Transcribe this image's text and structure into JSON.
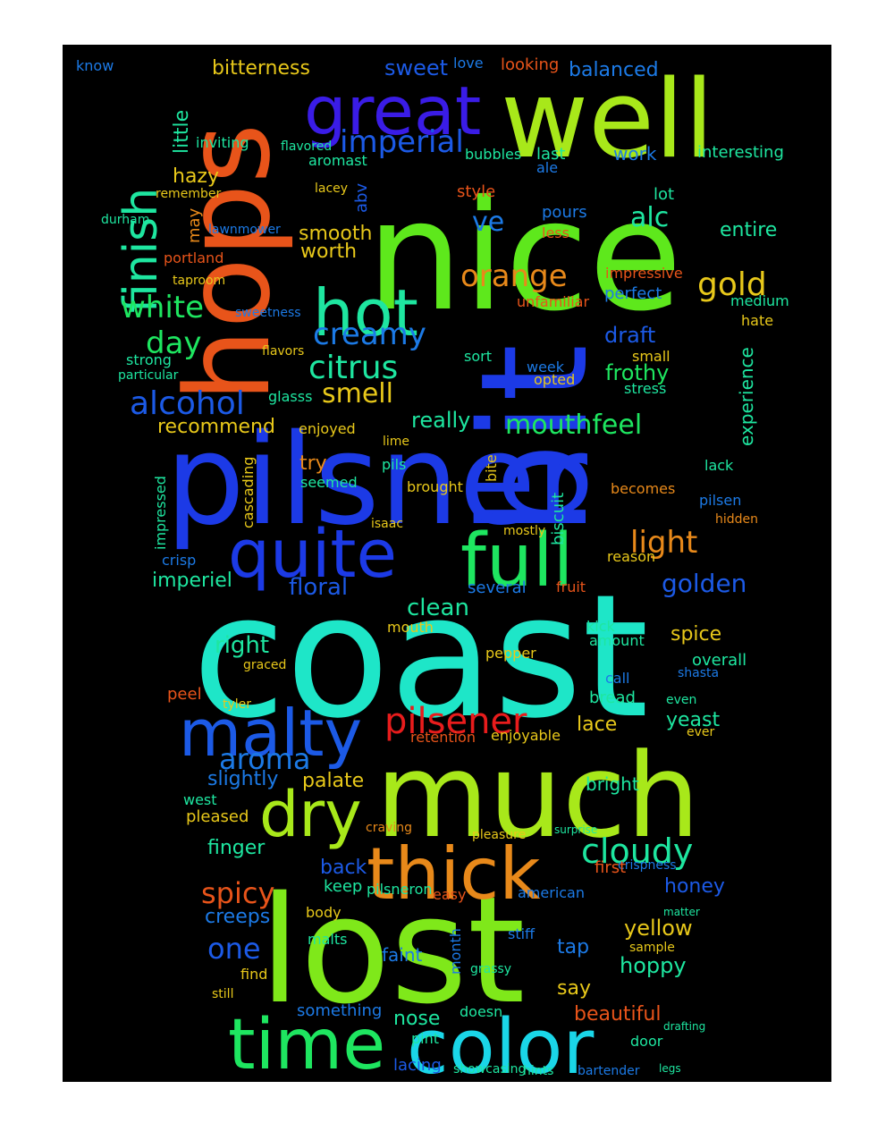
{
  "wordcloud": {
    "background": "#000000",
    "page_background": "#ffffff",
    "words": [
      {
        "text": "coast",
        "color": "#1ee6c8"
      },
      {
        "text": "bit",
        "color": "#1c3ae6"
      },
      {
        "text": "pilsner",
        "color": "#1c3ae6"
      },
      {
        "text": "nice",
        "color": "#5ee81c"
      },
      {
        "text": "lost",
        "color": "#7fe81a"
      },
      {
        "text": "much",
        "color": "#a8e81a"
      },
      {
        "text": "hops",
        "color": "#e8541a"
      },
      {
        "text": "well",
        "color": "#a8e81a"
      },
      {
        "text": "time",
        "color": "#1ee660"
      },
      {
        "text": "color",
        "color": "#1ad6e8"
      },
      {
        "text": "thick",
        "color": "#e8891a"
      },
      {
        "text": "quite",
        "color": "#1c3ae6"
      },
      {
        "text": "full",
        "color": "#1ee660"
      },
      {
        "text": "great",
        "color": "#3a1ce6"
      },
      {
        "text": "malty",
        "color": "#1c5ae6"
      },
      {
        "text": "hot",
        "color": "#1ee6a0"
      },
      {
        "text": "dry",
        "color": "#a8e81a"
      },
      {
        "text": "finish",
        "color": "#1ee6a0"
      },
      {
        "text": "pilsener",
        "color": "#e81c1c"
      },
      {
        "text": "cloudy",
        "color": "#1ee6a0"
      },
      {
        "text": "orange",
        "color": "#e8891a"
      },
      {
        "text": "creamy",
        "color": "#1c7ae6"
      },
      {
        "text": "citrus",
        "color": "#1ee6a0"
      },
      {
        "text": "mouthfeel",
        "color": "#1ee660"
      },
      {
        "text": "imperial",
        "color": "#1c5ae6"
      },
      {
        "text": "white",
        "color": "#1ee660"
      },
      {
        "text": "alcohol",
        "color": "#1c5ae6"
      },
      {
        "text": "light",
        "color": "#e8891a"
      },
      {
        "text": "smell",
        "color": "#e8c81a"
      },
      {
        "text": "gold",
        "color": "#e8c81a"
      },
      {
        "text": "day",
        "color": "#1ee660"
      },
      {
        "text": "aroma",
        "color": "#1c7ae6"
      },
      {
        "text": "spicy",
        "color": "#e8541a"
      },
      {
        "text": "one",
        "color": "#1c5ae6"
      },
      {
        "text": "alc",
        "color": "#1ee6a0"
      },
      {
        "text": "ve",
        "color": "#1c7ae6"
      },
      {
        "text": "golden",
        "color": "#1c5ae6"
      },
      {
        "text": "clean",
        "color": "#1ee6a0"
      },
      {
        "text": "floral",
        "color": "#1c5ae6"
      },
      {
        "text": "right",
        "color": "#1ee6a0"
      },
      {
        "text": "sweet",
        "color": "#1c5ae6"
      },
      {
        "text": "frothy",
        "color": "#1ee660"
      },
      {
        "text": "draft",
        "color": "#1c5ae6"
      },
      {
        "text": "bitterness",
        "color": "#e8c81a"
      },
      {
        "text": "really",
        "color": "#1ee6a0"
      },
      {
        "text": "balanced",
        "color": "#1c7ae6"
      },
      {
        "text": "entire",
        "color": "#1ee6a0"
      },
      {
        "text": "yellow",
        "color": "#e8c81a"
      },
      {
        "text": "hoppy",
        "color": "#1ee6a0"
      },
      {
        "text": "beautiful",
        "color": "#e8541a"
      },
      {
        "text": "lacing",
        "color": "#1c5ae6"
      },
      {
        "text": "honey",
        "color": "#1c5ae6"
      },
      {
        "text": "creeps",
        "color": "#1c7ae6"
      },
      {
        "text": "finger",
        "color": "#1ee6a0"
      },
      {
        "text": "slightly",
        "color": "#1c7ae6"
      },
      {
        "text": "palate",
        "color": "#e8c81a"
      },
      {
        "text": "spice",
        "color": "#e8c81a"
      },
      {
        "text": "bright",
        "color": "#1ee6a0"
      },
      {
        "text": "lace",
        "color": "#e8c81a"
      },
      {
        "text": "yeast",
        "color": "#1ee6a0"
      },
      {
        "text": "nose",
        "color": "#1ee6a0"
      },
      {
        "text": "say",
        "color": "#e8c81a"
      },
      {
        "text": "tap",
        "color": "#1c7ae6"
      },
      {
        "text": "faint",
        "color": "#1c7ae6"
      },
      {
        "text": "back",
        "color": "#1c5ae6"
      },
      {
        "text": "keep",
        "color": "#1ee6a0"
      },
      {
        "text": "try",
        "color": "#e8891a"
      },
      {
        "text": "recommend",
        "color": "#e8c81a"
      },
      {
        "text": "worth",
        "color": "#e8c81a"
      },
      {
        "text": "smooth",
        "color": "#e8c81a"
      },
      {
        "text": "hazy",
        "color": "#e8c81a"
      },
      {
        "text": "imperiel",
        "color": "#1ee6a0"
      },
      {
        "text": "perfect",
        "color": "#1c7ae6"
      },
      {
        "text": "work",
        "color": "#1c7ae6"
      },
      {
        "text": "interesting",
        "color": "#1ee6a0"
      },
      {
        "text": "looking",
        "color": "#e8541a"
      },
      {
        "text": "love",
        "color": "#1c7ae6"
      },
      {
        "text": "know",
        "color": "#1c7ae6"
      },
      {
        "text": "little",
        "color": "#1ee6a0"
      },
      {
        "text": "inviting",
        "color": "#1ee6a0"
      },
      {
        "text": "aromast",
        "color": "#1ee6a0"
      },
      {
        "text": "flavored",
        "color": "#1ee6a0"
      },
      {
        "text": "lacey",
        "color": "#e8c81a"
      },
      {
        "text": "abv",
        "color": "#1c5ae6"
      },
      {
        "text": "style",
        "color": "#e8541a"
      },
      {
        "text": "last",
        "color": "#1ee6a0"
      },
      {
        "text": "ale",
        "color": "#1c7ae6"
      },
      {
        "text": "lot",
        "color": "#1ee6a0"
      },
      {
        "text": "pours",
        "color": "#1c7ae6"
      },
      {
        "text": "less",
        "color": "#e8541a"
      },
      {
        "text": "impressive",
        "color": "#e8541a"
      },
      {
        "text": "medium",
        "color": "#1ee6a0"
      },
      {
        "text": "hate",
        "color": "#e8c81a"
      },
      {
        "text": "experience",
        "color": "#1ee6a0"
      },
      {
        "text": "stress",
        "color": "#1ee6a0"
      },
      {
        "text": "week",
        "color": "#1c7ae6"
      },
      {
        "text": "opted",
        "color": "#e8c81a"
      },
      {
        "text": "sort",
        "color": "#1ee6a0"
      },
      {
        "text": "small",
        "color": "#e8c81a"
      },
      {
        "text": "pils",
        "color": "#1ee6a0"
      },
      {
        "text": "lime",
        "color": "#e8c81a"
      },
      {
        "text": "brought",
        "color": "#e8c81a"
      },
      {
        "text": "biscuit",
        "color": "#1ee6a0"
      },
      {
        "text": "bite",
        "color": "#e8c81a"
      },
      {
        "text": "pilsen",
        "color": "#1c7ae6"
      },
      {
        "text": "lack",
        "color": "#1ee6a0"
      },
      {
        "text": "becomes",
        "color": "#e8891a"
      },
      {
        "text": "hidden",
        "color": "#e8891a"
      },
      {
        "text": "reason",
        "color": "#e8c81a"
      },
      {
        "text": "fruit",
        "color": "#e8541a"
      },
      {
        "text": "several",
        "color": "#1c7ae6"
      },
      {
        "text": "mouth",
        "color": "#e8c81a"
      },
      {
        "text": "kick",
        "color": "#1ee6a0"
      },
      {
        "text": "amount",
        "color": "#1ee6a0"
      },
      {
        "text": "pepper",
        "color": "#e8c81a"
      },
      {
        "text": "overall",
        "color": "#1ee6a0"
      },
      {
        "text": "shasta",
        "color": "#1c7ae6"
      },
      {
        "text": "call",
        "color": "#1c7ae6"
      },
      {
        "text": "bread",
        "color": "#1ee6a0"
      },
      {
        "text": "even",
        "color": "#1ee6a0"
      },
      {
        "text": "ever",
        "color": "#e8c81a"
      },
      {
        "text": "enjoyable",
        "color": "#e8c81a"
      },
      {
        "text": "retention",
        "color": "#e8541a"
      },
      {
        "text": "peel",
        "color": "#e8541a"
      },
      {
        "text": "tyler",
        "color": "#e8c81a"
      },
      {
        "text": "west",
        "color": "#1ee6a0"
      },
      {
        "text": "pleased",
        "color": "#e8c81a"
      },
      {
        "text": "graced",
        "color": "#e8c81a"
      },
      {
        "text": "crisp",
        "color": "#1c7ae6"
      },
      {
        "text": "impressed",
        "color": "#1ee6a0"
      },
      {
        "text": "cascading",
        "color": "#e8c81a"
      },
      {
        "text": "seemed",
        "color": "#1ee6a0"
      },
      {
        "text": "enjoyed",
        "color": "#e8c81a"
      },
      {
        "text": "isaac",
        "color": "#e8c81a"
      },
      {
        "text": "glasss",
        "color": "#1ee6a0"
      },
      {
        "text": "flavors",
        "color": "#e8c81a"
      },
      {
        "text": "strong",
        "color": "#1ee6a0"
      },
      {
        "text": "particular",
        "color": "#1ee6a0"
      },
      {
        "text": "portland",
        "color": "#e8541a"
      },
      {
        "text": "durham",
        "color": "#1ee6a0"
      },
      {
        "text": "remember",
        "color": "#e8c81a"
      },
      {
        "text": "sweetness",
        "color": "#1c7ae6"
      },
      {
        "text": "lawnmower",
        "color": "#1c7ae6"
      },
      {
        "text": "taproom",
        "color": "#e8c81a"
      },
      {
        "text": "may",
        "color": "#e8891a"
      },
      {
        "text": "bubbles",
        "color": "#1ee6a0"
      },
      {
        "text": "unfamiliar",
        "color": "#e8541a"
      },
      {
        "text": "mostly",
        "color": "#e8c81a"
      },
      {
        "text": "american",
        "color": "#1c7ae6"
      },
      {
        "text": "crispness",
        "color": "#1c7ae6"
      },
      {
        "text": "first",
        "color": "#e8541a"
      },
      {
        "text": "body",
        "color": "#e8c81a"
      },
      {
        "text": "malts",
        "color": "#1ee6a0"
      },
      {
        "text": "stiff",
        "color": "#1c7ae6"
      },
      {
        "text": "something",
        "color": "#1c7ae6"
      },
      {
        "text": "doesn",
        "color": "#1ee6a0"
      },
      {
        "text": "pint",
        "color": "#1ee6a0"
      },
      {
        "text": "door",
        "color": "#1ee6a0"
      },
      {
        "text": "hints",
        "color": "#1ee6a0"
      },
      {
        "text": "showcasing",
        "color": "#1ee6a0"
      },
      {
        "text": "bartender",
        "color": "#1c7ae6"
      },
      {
        "text": "grassy",
        "color": "#1ee6a0"
      },
      {
        "text": "sample",
        "color": "#e8c81a"
      },
      {
        "text": "still",
        "color": "#e8c81a"
      },
      {
        "text": "find",
        "color": "#e8c81a"
      },
      {
        "text": "easy",
        "color": "#e8541a"
      },
      {
        "text": "pilsneron",
        "color": "#1ee6a0"
      },
      {
        "text": "month",
        "color": "#1c7ae6"
      },
      {
        "text": "pleasure",
        "color": "#e8c81a"
      },
      {
        "text": "surprise",
        "color": "#1ee6a0"
      },
      {
        "text": "craving",
        "color": "#e8891a"
      },
      {
        "text": "matter",
        "color": "#1ee6a0"
      },
      {
        "text": "legs",
        "color": "#1ee6a0"
      },
      {
        "text": "drafting",
        "color": "#1ee6a0"
      }
    ]
  }
}
